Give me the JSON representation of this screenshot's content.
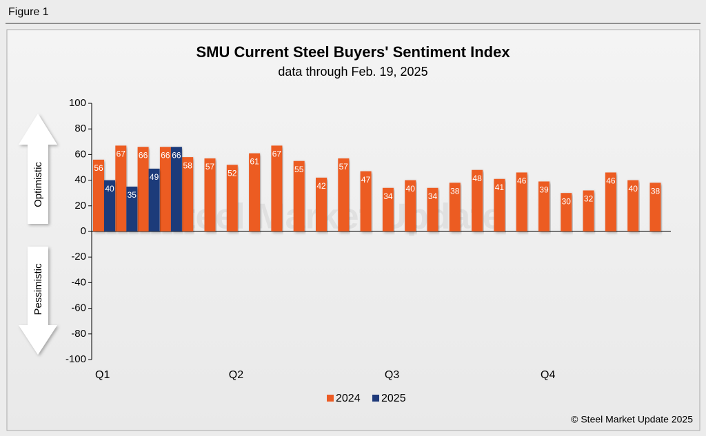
{
  "figure_label": "Figure 1",
  "copyright": "© Steel Market Update 2025",
  "watermark": "Steel Market Update",
  "arrow_labels": {
    "up": "Optimistic",
    "down": "Pessimistic"
  },
  "chart_data": {
    "type": "bar",
    "title": "SMU Current Steel Buyers' Sentiment Index",
    "subtitle": "data through Feb. 19, 2025",
    "categories": [
      "Q1",
      null,
      null,
      null,
      null,
      null,
      "Q2",
      null,
      null,
      null,
      null,
      null,
      null,
      "Q3",
      null,
      null,
      null,
      null,
      null,
      null,
      "Q4",
      null,
      null,
      null,
      null,
      null
    ],
    "series": [
      {
        "name": "2024",
        "color": "#ec5b24",
        "values": [
          56,
          67,
          66,
          66,
          58,
          57,
          52,
          61,
          67,
          55,
          42,
          57,
          47,
          34,
          40,
          34,
          38,
          48,
          41,
          46,
          39,
          30,
          32,
          46,
          40,
          38
        ]
      },
      {
        "name": "2025",
        "color": "#1f3a7a",
        "values": [
          40,
          35,
          49,
          66,
          null,
          null,
          null,
          null,
          null,
          null,
          null,
          null,
          null,
          null,
          null,
          null,
          null,
          null,
          null,
          null,
          null,
          null,
          null,
          null,
          null,
          null
        ]
      }
    ],
    "ylim": [
      -100,
      100
    ],
    "yticks": [
      -100,
      -80,
      -60,
      -40,
      -20,
      0,
      20,
      40,
      60,
      80,
      100
    ],
    "legend": "bottom",
    "grid": false
  }
}
